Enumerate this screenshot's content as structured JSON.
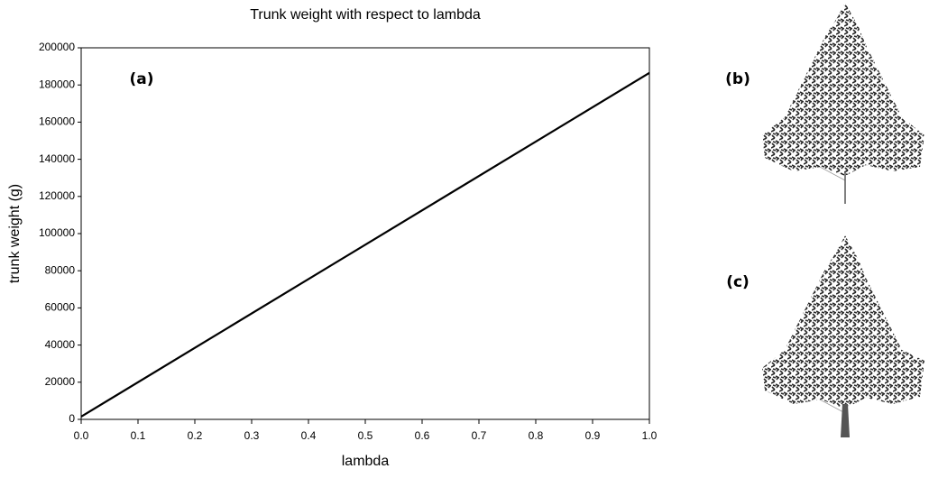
{
  "chart_data": {
    "type": "line",
    "title": "Trunk weight with respect to lambda",
    "x_label": "lambda",
    "y_label": "trunk weight (g)",
    "x": [
      0,
      1
    ],
    "values": [
      1500,
      186500
    ],
    "color": "#000000",
    "xlim": [
      0,
      1
    ],
    "xticks": [
      {
        "value": 0,
        "label": "0.0"
      },
      0.1,
      0.2,
      0.3,
      0.4,
      0.5,
      0.6,
      0.7,
      0.8,
      0.9,
      {
        "value": 1,
        "label": "1.0"
      }
    ],
    "ylim": [
      0,
      200000
    ],
    "yticks": [
      0,
      20000,
      40000,
      60000,
      80000,
      100000,
      120000,
      140000,
      160000,
      180000,
      200000
    ],
    "grid": false,
    "annotations": [
      "(a)",
      "(b)",
      "(c)"
    ]
  }
}
